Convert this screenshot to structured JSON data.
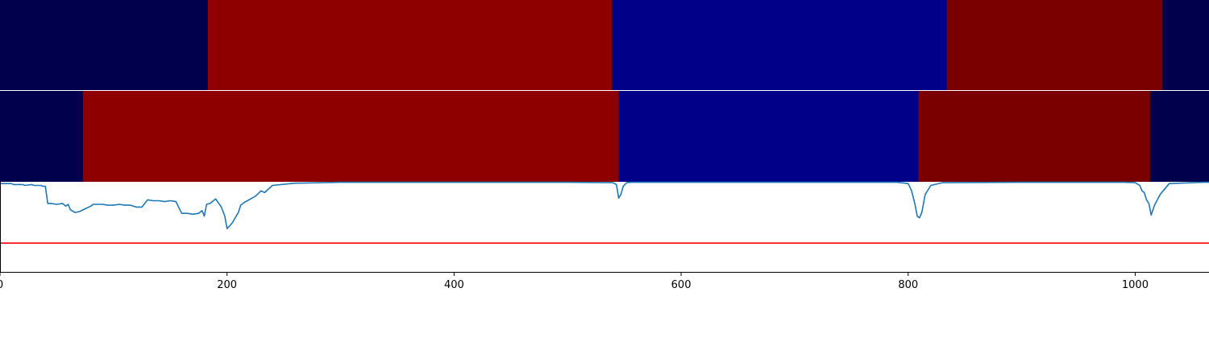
{
  "chart_data": [
    {
      "type": "heatmap",
      "segments": [
        {
          "start": 0,
          "end": 183,
          "color": "#00004c"
        },
        {
          "start": 183,
          "end": 539,
          "color": "#8e0000"
        },
        {
          "start": 539,
          "end": 834,
          "color": "#000088"
        },
        {
          "start": 834,
          "end": 1024,
          "color": "#7a0000"
        },
        {
          "start": 1024,
          "end": 1065,
          "color": "#00004c"
        }
      ]
    },
    {
      "type": "heatmap",
      "segments": [
        {
          "start": 0,
          "end": 73,
          "color": "#00004c"
        },
        {
          "start": 73,
          "end": 545,
          "color": "#8e0000"
        },
        {
          "start": 545,
          "end": 809,
          "color": "#000088"
        },
        {
          "start": 809,
          "end": 1013,
          "color": "#7a0000"
        },
        {
          "start": 1013,
          "end": 1065,
          "color": "#00004c"
        }
      ]
    },
    {
      "type": "line",
      "xlim": [
        0,
        1065
      ],
      "ylim": [
        0,
        1
      ],
      "grid": false,
      "x_ticks": [
        0,
        200,
        400,
        600,
        800,
        1000
      ],
      "x_tick_labels": [
        "0",
        "200",
        "400",
        "600",
        "800",
        "1000"
      ],
      "threshold": 0.32,
      "threshold_color": "#ff0000",
      "series": [
        {
          "color": "#1f77b4",
          "x": [
            0,
            10,
            12,
            20,
            22,
            28,
            30,
            36,
            38,
            40,
            42,
            45,
            50,
            55,
            58,
            60,
            62,
            66,
            70,
            75,
            80,
            82,
            85,
            90,
            95,
            100,
            105,
            110,
            115,
            120,
            125,
            130,
            135,
            140,
            145,
            150,
            155,
            160,
            165,
            170,
            175,
            178,
            180,
            182,
            185,
            190,
            195,
            198,
            200,
            203,
            205,
            208,
            210,
            212,
            215,
            225,
            230,
            233,
            240,
            260,
            300,
            400,
            500,
            540,
            543,
            545,
            547,
            549,
            552,
            556,
            560,
            600,
            700,
            790,
            800,
            803,
            806,
            808,
            810,
            812,
            815,
            820,
            830,
            900,
            990,
            1000,
            1004,
            1006,
            1008,
            1010,
            1012,
            1014,
            1017,
            1022,
            1030,
            1060,
            1065
          ],
          "y": [
            0.98,
            0.98,
            0.97,
            0.97,
            0.96,
            0.97,
            0.96,
            0.96,
            0.95,
            0.95,
            0.76,
            0.76,
            0.75,
            0.76,
            0.73,
            0.75,
            0.69,
            0.66,
            0.67,
            0.7,
            0.73,
            0.75,
            0.75,
            0.75,
            0.74,
            0.74,
            0.75,
            0.74,
            0.74,
            0.72,
            0.72,
            0.8,
            0.79,
            0.79,
            0.78,
            0.79,
            0.78,
            0.65,
            0.65,
            0.64,
            0.65,
            0.68,
            0.62,
            0.75,
            0.76,
            0.81,
            0.72,
            0.62,
            0.48,
            0.52,
            0.55,
            0.62,
            0.66,
            0.74,
            0.77,
            0.84,
            0.9,
            0.88,
            0.96,
            0.985,
            0.995,
            0.995,
            0.995,
            0.99,
            0.97,
            0.82,
            0.86,
            0.95,
            0.99,
            0.995,
            0.995,
            0.995,
            0.995,
            0.995,
            0.98,
            0.9,
            0.75,
            0.62,
            0.6,
            0.66,
            0.86,
            0.96,
            0.99,
            0.995,
            0.995,
            0.99,
            0.96,
            0.9,
            0.88,
            0.8,
            0.76,
            0.63,
            0.74,
            0.86,
            0.98,
            0.995,
            0.995
          ]
        }
      ]
    }
  ]
}
